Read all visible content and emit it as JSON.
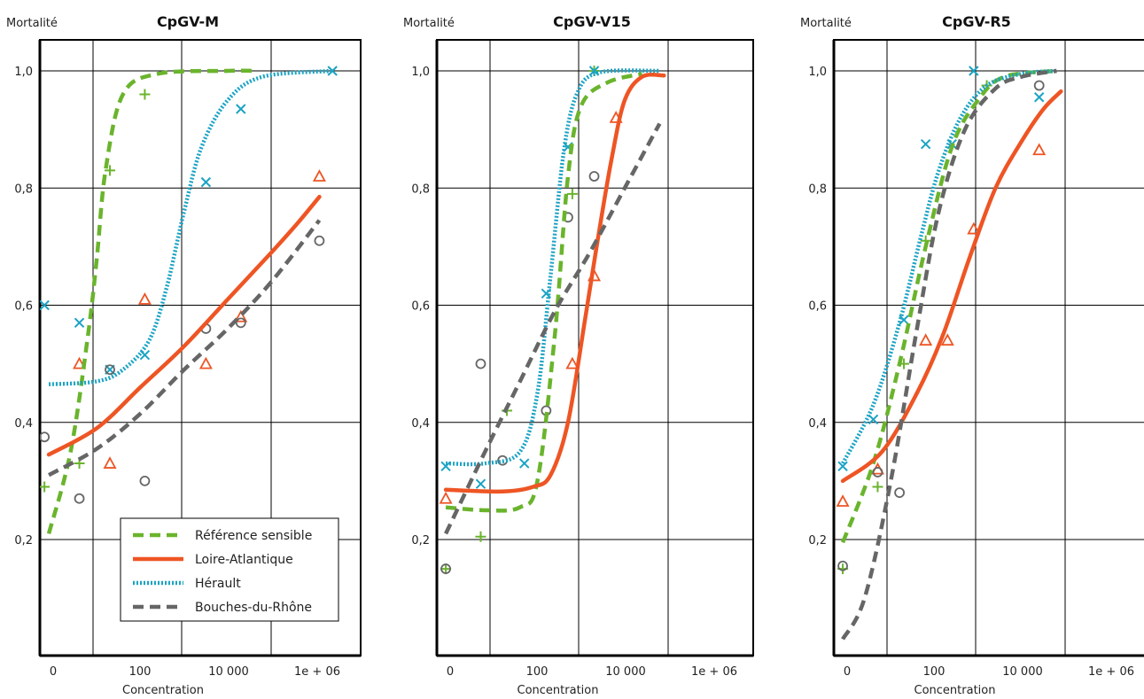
{
  "chart_data": [
    {
      "type": "line",
      "title": "CpGV-M",
      "ylabel": "Mortalité",
      "xlabel": "Concentration",
      "x_tick_labels": [
        "0",
        "100",
        "10 000",
        "1e + 06"
      ],
      "y_tick_labels": [
        "0,2",
        "0,4",
        "0,6",
        "0,8",
        "1,0"
      ],
      "ylim": [
        0.0,
        1.0
      ],
      "grid": true,
      "series": [
        {
          "name": "Référence sensible",
          "color": "#6ab42d",
          "marker": "plus",
          "points": [
            [
              -0.1,
              0.29
            ],
            [
              0.3,
              0.33
            ],
            [
              0.65,
              0.83
            ],
            [
              1.05,
              0.96
            ]
          ],
          "curve": [
            [
              -0.05,
              0.21
            ],
            [
              0.2,
              0.35
            ],
            [
              0.4,
              0.55
            ],
            [
              0.5,
              0.68
            ],
            [
              0.6,
              0.83
            ],
            [
              0.8,
              0.96
            ],
            [
              1.2,
              0.995
            ],
            [
              2.0,
              1.0
            ],
            [
              2.3,
              1.0
            ]
          ]
        },
        {
          "name": "Loire-Atlantique",
          "color": "#ee5524",
          "marker": "triangle",
          "points": [
            [
              0.3,
              0.5
            ],
            [
              0.65,
              0.33
            ],
            [
              1.05,
              0.61
            ],
            [
              1.75,
              0.5
            ],
            [
              2.15,
              0.58
            ],
            [
              3.05,
              0.82
            ]
          ],
          "curve": [
            [
              -0.05,
              0.345
            ],
            [
              0.5,
              0.39
            ],
            [
              1.0,
              0.46
            ],
            [
              1.5,
              0.53
            ],
            [
              2.0,
              0.61
            ],
            [
              2.5,
              0.69
            ],
            [
              2.8,
              0.74
            ],
            [
              3.05,
              0.785
            ]
          ]
        },
        {
          "name": "Hérault",
          "color": "#1ba3c4",
          "marker": "x",
          "points": [
            [
              -0.1,
              0.6
            ],
            [
              0.3,
              0.57
            ],
            [
              0.65,
              0.49
            ],
            [
              1.05,
              0.515
            ],
            [
              1.75,
              0.81
            ],
            [
              2.15,
              0.935
            ],
            [
              3.2,
              1.0
            ]
          ],
          "curve": [
            [
              -0.05,
              0.465
            ],
            [
              0.5,
              0.47
            ],
            [
              0.8,
              0.49
            ],
            [
              1.1,
              0.54
            ],
            [
              1.3,
              0.63
            ],
            [
              1.5,
              0.76
            ],
            [
              1.7,
              0.87
            ],
            [
              2.0,
              0.95
            ],
            [
              2.4,
              0.99
            ],
            [
              3.2,
              1.0
            ]
          ]
        },
        {
          "name": "Bouches-du-Rhône",
          "color": "#666666",
          "marker": "circle",
          "points": [
            [
              -0.1,
              0.375
            ],
            [
              0.3,
              0.27
            ],
            [
              0.65,
              0.49
            ],
            [
              1.05,
              0.3
            ],
            [
              1.75,
              0.56
            ],
            [
              2.15,
              0.57
            ],
            [
              3.05,
              0.71
            ]
          ],
          "curve": [
            [
              -0.05,
              0.31
            ],
            [
              0.5,
              0.355
            ],
            [
              1.0,
              0.415
            ],
            [
              1.5,
              0.49
            ],
            [
              2.0,
              0.56
            ],
            [
              2.5,
              0.64
            ],
            [
              3.05,
              0.745
            ]
          ]
        }
      ]
    },
    {
      "type": "line",
      "title": "CpGV-V15",
      "ylabel": "Mortalité",
      "xlabel": "Concentration",
      "x_tick_labels": [
        "0",
        "100",
        "10 000",
        "1e + 06"
      ],
      "y_tick_labels": [
        "0,2",
        "0,4",
        "0,6",
        "0,8",
        "1,0"
      ],
      "ylim": [
        0.0,
        1.0
      ],
      "grid": true,
      "series": [
        {
          "name": "Référence sensible",
          "color": "#6ab42d",
          "marker": "plus",
          "points": [
            [
              -0.05,
              0.15
            ],
            [
              0.35,
              0.205
            ],
            [
              0.65,
              0.42
            ],
            [
              1.4,
              0.79
            ],
            [
              1.65,
              1.0
            ]
          ],
          "curve": [
            [
              -0.05,
              0.255
            ],
            [
              0.4,
              0.25
            ],
            [
              0.8,
              0.255
            ],
            [
              1.0,
              0.3
            ],
            [
              1.2,
              0.55
            ],
            [
              1.35,
              0.82
            ],
            [
              1.5,
              0.94
            ],
            [
              1.8,
              0.98
            ],
            [
              2.2,
              0.995
            ]
          ]
        },
        {
          "name": "Loire-Atlantique",
          "color": "#ee5524",
          "marker": "triangle",
          "points": [
            [
              -0.05,
              0.27
            ],
            [
              1.4,
              0.5
            ],
            [
              1.65,
              0.65
            ],
            [
              1.9,
              0.92
            ]
          ],
          "curve": [
            [
              -0.05,
              0.285
            ],
            [
              0.6,
              0.282
            ],
            [
              0.95,
              0.29
            ],
            [
              1.15,
              0.31
            ],
            [
              1.35,
              0.4
            ],
            [
              1.55,
              0.58
            ],
            [
              1.7,
              0.72
            ],
            [
              1.85,
              0.85
            ],
            [
              2.0,
              0.95
            ],
            [
              2.2,
              0.99
            ],
            [
              2.45,
              0.992
            ]
          ]
        },
        {
          "name": "Hérault",
          "color": "#1ba3c4",
          "marker": "x",
          "points": [
            [
              -0.05,
              0.325
            ],
            [
              0.35,
              0.295
            ],
            [
              0.85,
              0.33
            ],
            [
              1.1,
              0.62
            ],
            [
              1.35,
              0.87
            ],
            [
              1.65,
              1.0
            ]
          ],
          "curve": [
            [
              -0.05,
              0.33
            ],
            [
              0.4,
              0.33
            ],
            [
              0.8,
              0.35
            ],
            [
              1.0,
              0.45
            ],
            [
              1.15,
              0.65
            ],
            [
              1.3,
              0.86
            ],
            [
              1.45,
              0.96
            ],
            [
              1.7,
              0.997
            ],
            [
              2.4,
              1.0
            ]
          ]
        },
        {
          "name": "Bouches-du-Rhône",
          "color": "#666666",
          "marker": "circle",
          "points": [
            [
              -0.05,
              0.15
            ],
            [
              0.35,
              0.5
            ],
            [
              0.6,
              0.335
            ],
            [
              1.1,
              0.42
            ],
            [
              1.35,
              0.75
            ],
            [
              1.65,
              0.82
            ]
          ],
          "curve": [
            [
              -0.05,
              0.21
            ],
            [
              0.4,
              0.35
            ],
            [
              0.8,
              0.47
            ],
            [
              1.2,
              0.59
            ],
            [
              1.6,
              0.69
            ],
            [
              2.0,
              0.8
            ],
            [
              2.4,
              0.91
            ]
          ]
        }
      ]
    },
    {
      "type": "line",
      "title": "CpGV-R5",
      "ylabel": "Mortalité",
      "xlabel": "Concentration",
      "x_tick_labels": [
        "0",
        "100",
        "10 000",
        "1e + 06"
      ],
      "y_tick_labels": [
        "0,2",
        "0,4",
        "0,6",
        "0,8",
        "1,0"
      ],
      "ylim": [
        0.0,
        1.0
      ],
      "grid": true,
      "series": [
        {
          "name": "Référence sensible",
          "color": "#6ab42d",
          "marker": "plus",
          "points": [
            [
              -0.05,
              0.15
            ],
            [
              0.35,
              0.29
            ],
            [
              0.65,
              0.5
            ],
            [
              0.9,
              0.71
            ],
            [
              1.6,
              0.975
            ]
          ],
          "curve": [
            [
              -0.05,
              0.195
            ],
            [
              0.3,
              0.33
            ],
            [
              0.6,
              0.5
            ],
            [
              0.9,
              0.7
            ],
            [
              1.2,
              0.87
            ],
            [
              1.5,
              0.95
            ],
            [
              1.8,
              0.99
            ],
            [
              2.4,
              1.0
            ]
          ]
        },
        {
          "name": "Loire-Atlantique",
          "color": "#ee5524",
          "marker": "triangle",
          "points": [
            [
              -0.05,
              0.265
            ],
            [
              0.35,
              0.32
            ],
            [
              0.9,
              0.54
            ],
            [
              1.15,
              0.54
            ],
            [
              1.45,
              0.73
            ],
            [
              2.2,
              0.865
            ]
          ],
          "curve": [
            [
              -0.05,
              0.3
            ],
            [
              0.4,
              0.35
            ],
            [
              0.8,
              0.45
            ],
            [
              1.1,
              0.55
            ],
            [
              1.4,
              0.68
            ],
            [
              1.7,
              0.8
            ],
            [
              2.0,
              0.88
            ],
            [
              2.25,
              0.935
            ],
            [
              2.45,
              0.965
            ]
          ]
        },
        {
          "name": "Hérault",
          "color": "#1ba3c4",
          "marker": "x",
          "points": [
            [
              -0.05,
              0.325
            ],
            [
              0.3,
              0.405
            ],
            [
              0.65,
              0.575
            ],
            [
              0.9,
              0.875
            ],
            [
              1.2,
              0.875
            ],
            [
              1.45,
              1.0
            ],
            [
              2.2,
              0.955
            ]
          ],
          "curve": [
            [
              -0.05,
              0.33
            ],
            [
              0.3,
              0.43
            ],
            [
              0.6,
              0.57
            ],
            [
              0.85,
              0.72
            ],
            [
              1.05,
              0.83
            ],
            [
              1.3,
              0.92
            ],
            [
              1.6,
              0.975
            ],
            [
              2.0,
              0.995
            ],
            [
              2.4,
              1.0
            ]
          ]
        },
        {
          "name": "Bouches-du-Rhône",
          "color": "#666666",
          "marker": "circle",
          "points": [
            [
              -0.05,
              0.155
            ],
            [
              0.35,
              0.315
            ],
            [
              0.6,
              0.28
            ],
            [
              2.2,
              0.975
            ]
          ],
          "curve": [
            [
              -0.05,
              0.03
            ],
            [
              0.2,
              0.1
            ],
            [
              0.5,
              0.3
            ],
            [
              0.8,
              0.56
            ],
            [
              1.05,
              0.76
            ],
            [
              1.35,
              0.9
            ],
            [
              1.7,
              0.97
            ],
            [
              2.0,
              0.99
            ],
            [
              2.4,
              1.0
            ]
          ]
        }
      ]
    }
  ],
  "legend": {
    "placement": "bottom-right of first panel",
    "items": [
      {
        "label": "Référence sensible",
        "color": "#6ab42d",
        "style": "dashed"
      },
      {
        "label": "Loire-Atlantique",
        "color": "#ee5524",
        "style": "solid"
      },
      {
        "label": "Hérault",
        "color": "#1ba3c4",
        "style": "dotted"
      },
      {
        "label": "Bouches-du-Rhône",
        "color": "#666666",
        "style": "dashed"
      }
    ]
  }
}
